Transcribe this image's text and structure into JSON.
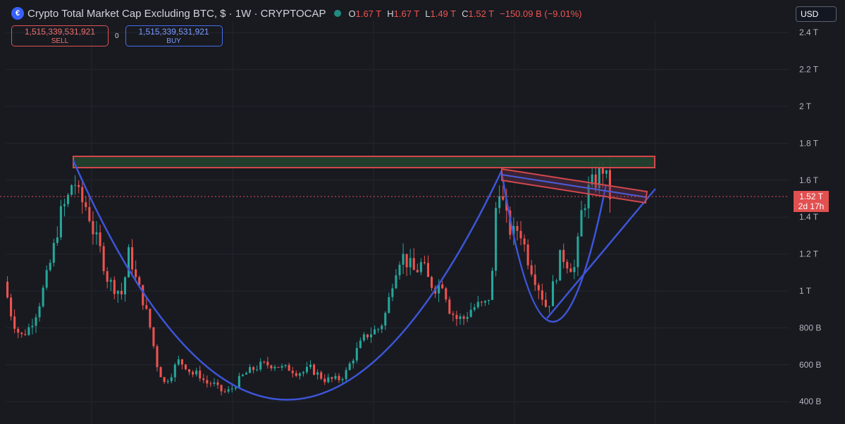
{
  "header": {
    "title": "Crypto Total Market Cap Excluding BTC, $ · 1W · CRYPTOCAP",
    "ohlc": [
      {
        "key": "O",
        "value": "1.67 T"
      },
      {
        "key": "H",
        "value": "1.67 T"
      },
      {
        "key": "L",
        "value": "1.49 T"
      },
      {
        "key": "C",
        "value": "1.52 T"
      }
    ],
    "change": "−150.09 B (−9.01%)"
  },
  "trade": {
    "sell_price": "1,515,339,531,921",
    "sell_label": "SELL",
    "spread": "0",
    "buy_price": "1,515,339,531,921",
    "buy_label": "BUY"
  },
  "currency": "USD",
  "price_tag": {
    "price": "1.52 T",
    "countdown": "2d 17h"
  },
  "colors": {
    "background": "#181a20",
    "up": "#26a69a",
    "down": "#ef5350",
    "pattern_line": "#3d55d8",
    "resistance_fill": "#23422f",
    "resistance_border": "#d2484b"
  },
  "chart_data": {
    "type": "candlestick",
    "interval": "1W",
    "y_unit": "USD",
    "y_ticks": [
      {
        "value": 400000000000,
        "label": "400 B"
      },
      {
        "value": 600000000000,
        "label": "600 B"
      },
      {
        "value": 800000000000,
        "label": "800 B"
      },
      {
        "value": 1000000000000,
        "label": "1 T"
      },
      {
        "value": 1200000000000,
        "label": "1.2 T"
      },
      {
        "value": 1400000000000,
        "label": "1.4 T"
      },
      {
        "value": 1600000000000,
        "label": "1.6 T"
      },
      {
        "value": 1800000000000,
        "label": "1.8 T"
      },
      {
        "value": 2000000000000,
        "label": "2 T"
      },
      {
        "value": 2200000000000,
        "label": "2.2 T"
      },
      {
        "value": 2400000000000,
        "label": "2.4 T"
      }
    ],
    "ylim": [
      300000000000,
      2450000000000
    ],
    "grid": true,
    "last_price": 1520000000000,
    "trend_path_t": [
      [
        0.0,
        1.05
      ],
      [
        0.012,
        0.85
      ],
      [
        0.024,
        0.75
      ],
      [
        0.036,
        0.8
      ],
      [
        0.048,
        0.9
      ],
      [
        0.06,
        1.05
      ],
      [
        0.07,
        1.2
      ],
      [
        0.08,
        1.4
      ],
      [
        0.092,
        1.5
      ],
      [
        0.1,
        1.62
      ],
      [
        0.108,
        1.5
      ],
      [
        0.12,
        1.45
      ],
      [
        0.13,
        1.3
      ],
      [
        0.14,
        1.2
      ],
      [
        0.15,
        1.05
      ],
      [
        0.16,
        1.02
      ],
      [
        0.17,
        0.98
      ],
      [
        0.18,
        1.22
      ],
      [
        0.19,
        1.05
      ],
      [
        0.2,
        0.95
      ],
      [
        0.21,
        0.8
      ],
      [
        0.22,
        0.6
      ],
      [
        0.23,
        0.5
      ],
      [
        0.24,
        0.55
      ],
      [
        0.25,
        0.62
      ],
      [
        0.26,
        0.6
      ],
      [
        0.27,
        0.55
      ],
      [
        0.28,
        0.55
      ],
      [
        0.29,
        0.5
      ],
      [
        0.3,
        0.5
      ],
      [
        0.31,
        0.46
      ],
      [
        0.32,
        0.45
      ],
      [
        0.33,
        0.48
      ],
      [
        0.34,
        0.53
      ],
      [
        0.35,
        0.56
      ],
      [
        0.36,
        0.58
      ],
      [
        0.37,
        0.6
      ],
      [
        0.38,
        0.6
      ],
      [
        0.39,
        0.6
      ],
      [
        0.4,
        0.58
      ],
      [
        0.41,
        0.58
      ],
      [
        0.42,
        0.56
      ],
      [
        0.43,
        0.56
      ],
      [
        0.44,
        0.58
      ],
      [
        0.45,
        0.55
      ],
      [
        0.46,
        0.52
      ],
      [
        0.47,
        0.52
      ],
      [
        0.48,
        0.52
      ],
      [
        0.49,
        0.55
      ],
      [
        0.5,
        0.63
      ],
      [
        0.51,
        0.7
      ],
      [
        0.52,
        0.76
      ],
      [
        0.53,
        0.78
      ],
      [
        0.54,
        0.8
      ],
      [
        0.55,
        0.9
      ],
      [
        0.56,
        1.1
      ],
      [
        0.57,
        1.2
      ],
      [
        0.58,
        1.15
      ],
      [
        0.59,
        1.1
      ],
      [
        0.6,
        1.15
      ],
      [
        0.61,
        1.05
      ],
      [
        0.62,
        1.02
      ],
      [
        0.63,
        1.05
      ],
      [
        0.64,
        0.9
      ],
      [
        0.65,
        0.85
      ],
      [
        0.66,
        0.85
      ],
      [
        0.67,
        0.9
      ],
      [
        0.68,
        0.92
      ],
      [
        0.69,
        0.92
      ],
      [
        0.7,
        1.0
      ],
      [
        0.705,
        1.4
      ],
      [
        0.71,
        1.6
      ],
      [
        0.72,
        1.4
      ],
      [
        0.73,
        1.3
      ],
      [
        0.74,
        1.35
      ],
      [
        0.75,
        1.2
      ],
      [
        0.76,
        1.1
      ],
      [
        0.77,
        1.0
      ],
      [
        0.78,
        0.9
      ],
      [
        0.79,
        1.05
      ],
      [
        0.8,
        1.2
      ],
      [
        0.81,
        1.15
      ],
      [
        0.82,
        1.12
      ],
      [
        0.83,
        1.45
      ],
      [
        0.84,
        1.55
      ],
      [
        0.85,
        1.6
      ],
      [
        0.86,
        1.67
      ],
      [
        0.87,
        1.52
      ]
    ],
    "drawings": [
      {
        "type": "resistance-zone",
        "from": 1670000000000,
        "to": 1740000000000
      },
      {
        "type": "cup-arc",
        "label": "cup"
      },
      {
        "type": "cup-arc",
        "label": "inner-cup"
      },
      {
        "type": "trendline",
        "label": "rising-support"
      },
      {
        "type": "channel",
        "label": "falling-flag"
      }
    ]
  }
}
